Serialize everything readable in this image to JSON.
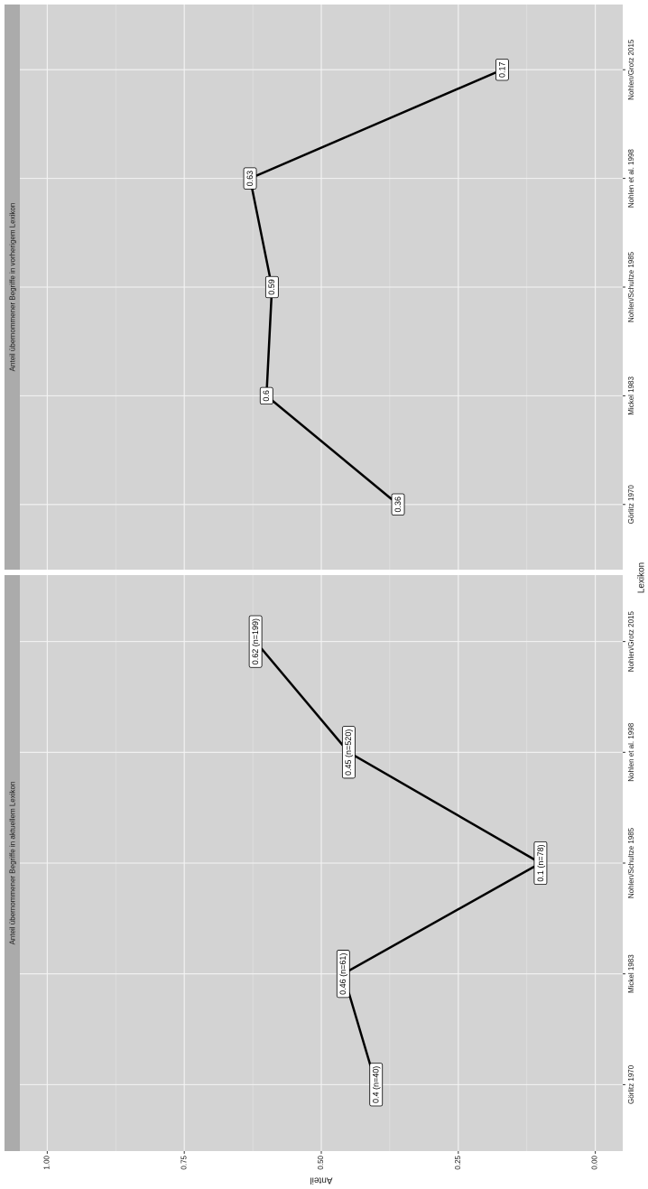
{
  "chart_data": {
    "type": "line",
    "x_label": "Lexikon",
    "y_label": "Anteil",
    "categories": [
      "Görlitz 1970",
      "Mickel 1983",
      "Nohlen/Schultze 1985",
      "Nohlen et al. 1998",
      "Nohlen/Grotz 2015"
    ],
    "ylim": [
      -0.05,
      1.05
    ],
    "yticks": [
      {
        "value": 0,
        "label": "0.00"
      },
      {
        "value": 0.25,
        "label": "0.25"
      },
      {
        "value": 0.5,
        "label": "0.50"
      },
      {
        "value": 0.75,
        "label": "0.75"
      },
      {
        "value": 1,
        "label": "1.00"
      }
    ],
    "grid": true,
    "color": "#000000",
    "panels": [
      {
        "title": "Anteil übernommener Begriffe in aktuellem Lexikon",
        "values": [
          0.4,
          0.46,
          0.1,
          0.45,
          0.62
        ],
        "value_labels": [
          "0.4 (n=40)",
          "0.46 (n=61)",
          "0.1 (n=78)",
          "0.45 (n=520)",
          "0.62 (n=199)"
        ]
      },
      {
        "title": "Anteil übernommener Begriffe in vorherigem Lexikon",
        "values": [
          0.36,
          0.6,
          0.59,
          0.63,
          0.17
        ]
      }
    ]
  }
}
